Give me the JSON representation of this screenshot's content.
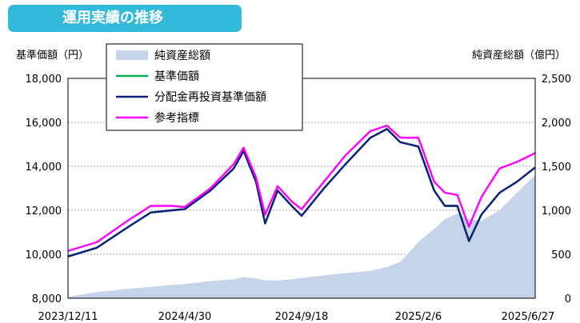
{
  "header": {
    "title": "運用実績の推移"
  },
  "chart_data": {
    "type": "line",
    "ylabel_left": "基準価額（円）",
    "ylabel_right": "純資産総額（億円）",
    "x_tick_labels": [
      "2023/12/11",
      "2024/4/30",
      "2024/9/18",
      "2025/2/6",
      "2025/6/27"
    ],
    "ylim_left": [
      8000,
      18000
    ],
    "ylim_right": [
      0,
      2500
    ],
    "yticks_left": [
      "8,000",
      "10,000",
      "12,000",
      "14,000",
      "16,000",
      "18,000"
    ],
    "yticks_right": [
      "0",
      "500",
      "1,000",
      "1,500",
      "2,000",
      "2,500"
    ],
    "grid": "horizontal dotted",
    "legend_position": "top-left",
    "x": [
      "2023/12/11",
      "2024/1/15",
      "2024/2/20",
      "2024/3/20",
      "2024/4/15",
      "2024/4/30",
      "2024/5/31",
      "2024/6/28",
      "2024/7/10",
      "2024/7/25",
      "2024/8/5",
      "2024/8/20",
      "2024/9/6",
      "2024/9/18",
      "2024/10/15",
      "2024/11/10",
      "2024/12/10",
      "2024/12/30",
      "2025/1/15",
      "2025/2/6",
      "2025/2/25",
      "2025/3/10",
      "2025/3/25",
      "2025/4/8",
      "2025/4/23",
      "2025/5/15",
      "2025/6/5",
      "2025/6/27"
    ],
    "series": [
      {
        "name": "純資産総額",
        "type": "area",
        "axis": "right",
        "color": "#c5d4e8",
        "values": [
          15,
          70,
          105,
          130,
          150,
          160,
          195,
          215,
          240,
          225,
          205,
          200,
          215,
          230,
          260,
          285,
          310,
          355,
          410,
          640,
          790,
          900,
          960,
          900,
          880,
          1000,
          1200,
          1400
        ]
      },
      {
        "name": "基準価額",
        "type": "line",
        "axis": "left",
        "color": "#00b050",
        "values": [
          9900,
          10300,
          11200,
          11900,
          12000,
          12050,
          12900,
          13900,
          14700,
          13300,
          11400,
          12900,
          12200,
          11750,
          13000,
          14100,
          15300,
          15700,
          15100,
          14900,
          12900,
          12200,
          12200,
          10600,
          11800,
          12800,
          13300,
          13950
        ]
      },
      {
        "name": "分配金再投資基準価額",
        "type": "line",
        "axis": "left",
        "color": "#0b1f7a",
        "values": [
          9900,
          10300,
          11200,
          11900,
          12000,
          12050,
          12900,
          13900,
          14700,
          13300,
          11400,
          12900,
          12200,
          11750,
          13000,
          14100,
          15300,
          15700,
          15100,
          14900,
          12900,
          12200,
          12200,
          10600,
          11800,
          12800,
          13300,
          13950
        ]
      },
      {
        "name": "参考指標",
        "type": "line",
        "axis": "left",
        "color": "#ff00ff",
        "values": [
          10150,
          10550,
          11500,
          12200,
          12200,
          12150,
          13000,
          14100,
          14850,
          13500,
          11800,
          13100,
          12400,
          12050,
          13300,
          14500,
          15600,
          15850,
          15300,
          15300,
          13300,
          12800,
          12700,
          11250,
          12600,
          13900,
          14200,
          14600
        ]
      }
    ]
  }
}
